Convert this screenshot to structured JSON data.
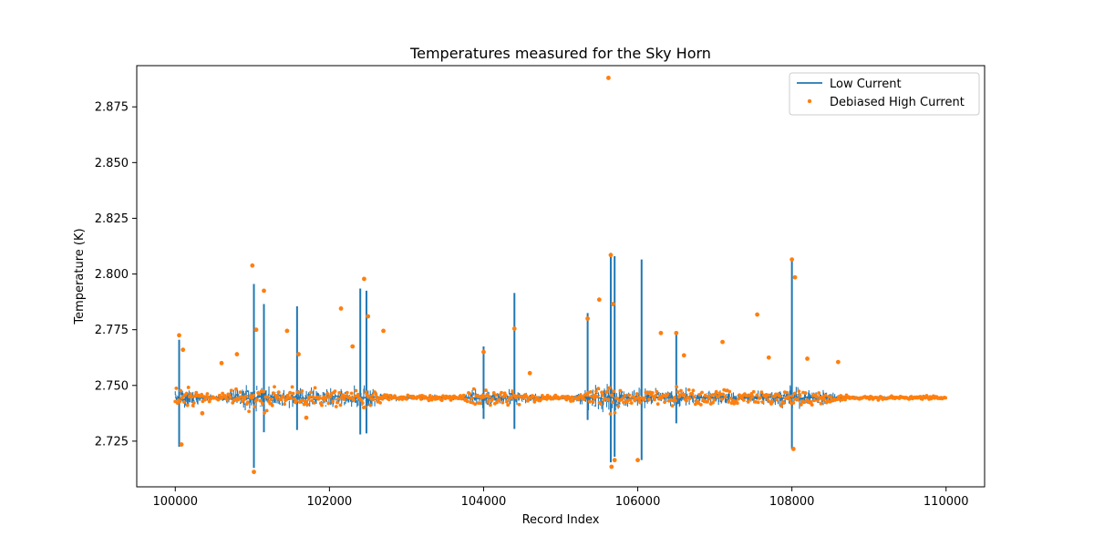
{
  "chart_data": {
    "type": "line",
    "title": "Temperatures measured for the Sky Horn",
    "xlabel": "Record Index",
    "ylabel": "Temperature (K)",
    "xlim": [
      99500,
      110500
    ],
    "ylim": [
      2.7045,
      2.8935
    ],
    "xticks": [
      100000,
      102000,
      104000,
      106000,
      108000,
      110000
    ],
    "xtick_labels": [
      "100000",
      "102000",
      "104000",
      "106000",
      "108000",
      "110000"
    ],
    "yticks": [
      2.725,
      2.75,
      2.775,
      2.8,
      2.825,
      2.85,
      2.875
    ],
    "ytick_labels": [
      "2.725",
      "2.750",
      "2.775",
      "2.800",
      "2.825",
      "2.850",
      "2.875"
    ],
    "grid": false,
    "legend_position": "top-right",
    "series": [
      {
        "name": "Low Current",
        "kind": "line",
        "color": "#1f77b4",
        "x": [
          100000,
          100100,
          100200,
          100300,
          100500,
          100600,
          100700,
          100800,
          100900,
          101000,
          101100,
          101200,
          101350,
          101450,
          101550,
          101650,
          101800,
          101950,
          102100,
          102250,
          102400,
          102500,
          102600,
          102700,
          102850,
          103000,
          103200,
          103400,
          103600,
          103800,
          103950,
          104000,
          104150,
          104300,
          104400,
          104550,
          104700,
          104850,
          105000,
          105200,
          105350,
          105450,
          105550,
          105650,
          105700,
          105800,
          105900,
          106000,
          106100,
          106200,
          106350,
          106500,
          106650,
          106800,
          107000,
          107150,
          107300,
          107450,
          107600,
          107750,
          107900,
          108000,
          108100,
          108200,
          108350,
          108500,
          108650,
          108800,
          109000,
          109200,
          109400,
          109600,
          109800,
          110000
        ],
        "y": [
          2.7445,
          2.7435,
          2.7455,
          2.7442,
          2.7448,
          2.744,
          2.7452,
          2.7438,
          2.7445,
          2.7438,
          2.745,
          2.7442,
          2.7455,
          2.7435,
          2.745,
          2.7442,
          2.7446,
          2.7443,
          2.7452,
          2.7438,
          2.7447,
          2.7444,
          2.7449,
          2.7441,
          2.7446,
          2.7443,
          2.7445,
          2.7448,
          2.7442,
          2.7446,
          2.7441,
          2.7445,
          2.7439,
          2.7451,
          2.7444,
          2.7447,
          2.7443,
          2.7449,
          2.7442,
          2.7446,
          2.7444,
          2.7448,
          2.744,
          2.7452,
          2.7436,
          2.7448,
          2.7443,
          2.7446,
          2.7441,
          2.7449,
          2.7444,
          2.7447,
          2.7442,
          2.7446,
          2.7443,
          2.7448,
          2.7441,
          2.7446,
          2.7444,
          2.7449,
          2.7442,
          2.7446,
          2.744,
          2.7448,
          2.7443,
          2.7446,
          2.7444,
          2.7447,
          2.7443,
          2.7446,
          2.7445,
          2.7444,
          2.7446,
          2.7445
        ]
      },
      {
        "name": "Debiased High Current",
        "kind": "scatter",
        "color": "#ff7f0e",
        "x": [
          100050,
          100080,
          100100,
          100350,
          100600,
          100800,
          101000,
          101020,
          101050,
          101150,
          101450,
          101600,
          101700,
          102150,
          102300,
          102450,
          102500,
          102700,
          104000,
          104400,
          104600,
          105350,
          105500,
          105620,
          105650,
          105660,
          105680,
          105700,
          106000,
          106300,
          106500,
          106600,
          107100,
          107550,
          107700,
          108000,
          108020,
          108040,
          108200,
          108600
        ],
        "y": [
          2.7725,
          2.7235,
          2.766,
          2.7375,
          2.76,
          2.764,
          2.8038,
          2.7112,
          2.775,
          2.7925,
          2.7745,
          2.764,
          2.7355,
          2.7845,
          2.7675,
          2.7978,
          2.781,
          2.7745,
          2.765,
          2.7755,
          2.7555,
          2.78,
          2.7885,
          2.888,
          2.8085,
          2.7135,
          2.7865,
          2.7165,
          2.7165,
          2.7735,
          2.7735,
          2.7635,
          2.7695,
          2.7818,
          2.7625,
          2.8065,
          2.7215,
          2.7985,
          2.762,
          2.7605
        ]
      }
    ]
  }
}
